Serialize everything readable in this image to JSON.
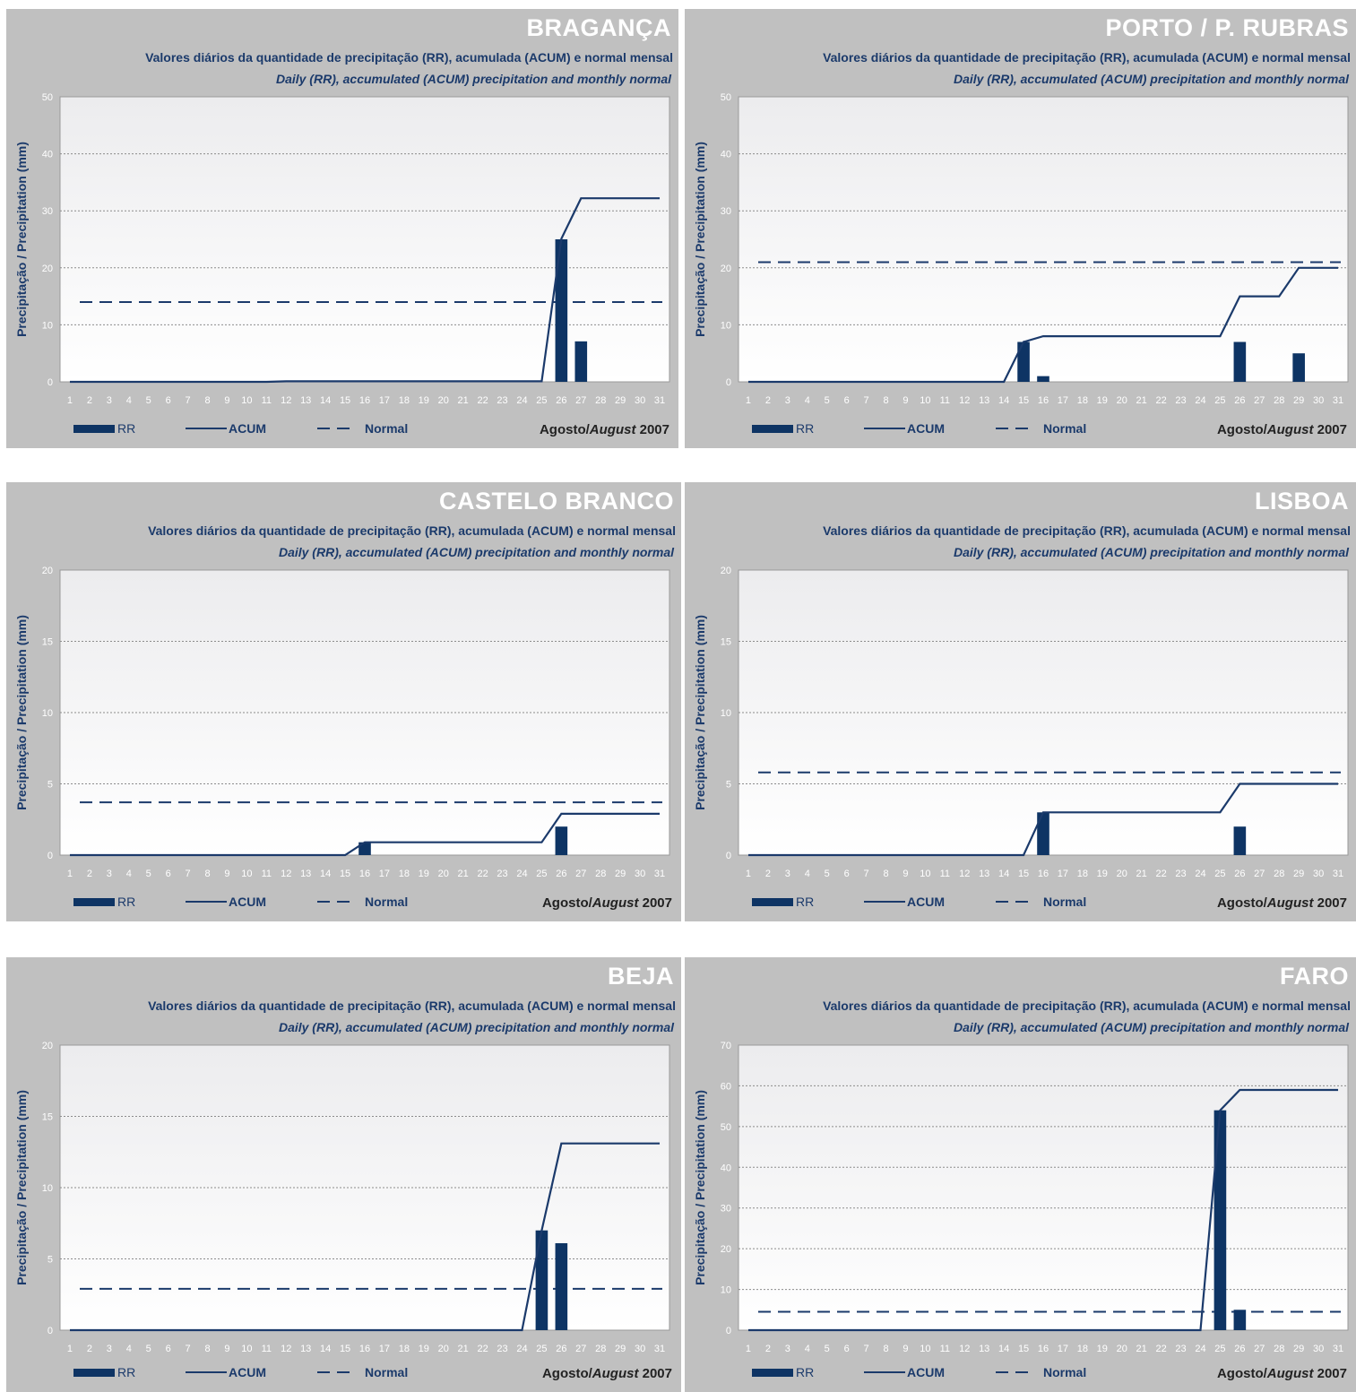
{
  "common": {
    "subtitle_pt": "Valores diários da quantidade de precipitação (RR), acumulada (ACUM) e normal mensal",
    "subtitle_en": "Daily  (RR), accumulated  (ACUM) precipitation and monthly normal",
    "ylabel": "Precipitação / Precipitation  (mm)",
    "legend": {
      "rr": "RR",
      "acum": "ACUM",
      "normal": "Normal"
    },
    "month_pt": "Agosto/",
    "month_en": "August",
    "year": " 2007",
    "colors": {
      "bar": "#0e3464",
      "line": "#1b3a6b",
      "panel": "#c0c0c0"
    }
  },
  "chart_data": [
    {
      "type": "bar",
      "title": "BRAGANÇA",
      "x": [
        "1",
        "2",
        "3",
        "4",
        "5",
        "6",
        "7",
        "8",
        "9",
        "10",
        "11",
        "12",
        "13",
        "14",
        "15",
        "16",
        "17",
        "18",
        "19",
        "20",
        "21",
        "22",
        "23",
        "24",
        "25",
        "26",
        "27",
        "28",
        "29",
        "30",
        "31"
      ],
      "ylim": [
        0,
        50
      ],
      "yticks": [
        0,
        10,
        20,
        30,
        40,
        50
      ],
      "grid": true,
      "series": [
        {
          "name": "RR",
          "type": "bar",
          "values": [
            0,
            0,
            0,
            0,
            0,
            0,
            0,
            0,
            0,
            0,
            0,
            0,
            0,
            0,
            0,
            0,
            0,
            0,
            0,
            0,
            0,
            0,
            0,
            0,
            0,
            25,
            7.1,
            0,
            0,
            0,
            0
          ]
        },
        {
          "name": "ACUM",
          "type": "line",
          "values": [
            0,
            0,
            0,
            0,
            0,
            0,
            0,
            0,
            0,
            0,
            0,
            0.1,
            0.1,
            0.1,
            0.1,
            0.1,
            0.1,
            0.1,
            0.1,
            0.1,
            0.1,
            0.1,
            0.1,
            0.1,
            0.1,
            25.1,
            32.2,
            32.2,
            32.2,
            32.2,
            32.2
          ]
        },
        {
          "name": "Normal",
          "type": "line",
          "value": 14
        }
      ]
    },
    {
      "type": "bar",
      "title": "PORTO / P. RUBRAS",
      "x": [
        "1",
        "2",
        "3",
        "4",
        "5",
        "6",
        "7",
        "8",
        "9",
        "10",
        "11",
        "12",
        "13",
        "14",
        "15",
        "16",
        "17",
        "18",
        "19",
        "20",
        "21",
        "22",
        "23",
        "24",
        "25",
        "26",
        "27",
        "28",
        "29",
        "30",
        "31"
      ],
      "ylim": [
        0,
        50
      ],
      "yticks": [
        0,
        10,
        20,
        30,
        40,
        50
      ],
      "grid": true,
      "series": [
        {
          "name": "RR",
          "type": "bar",
          "values": [
            0,
            0,
            0,
            0,
            0,
            0,
            0,
            0,
            0,
            0,
            0,
            0,
            0,
            0,
            7,
            1,
            0,
            0,
            0,
            0,
            0,
            0,
            0,
            0,
            0,
            7,
            0,
            0,
            5,
            0,
            0
          ]
        },
        {
          "name": "ACUM",
          "type": "line",
          "values": [
            0,
            0,
            0,
            0,
            0,
            0,
            0,
            0,
            0,
            0,
            0,
            0,
            0,
            0,
            7,
            8,
            8,
            8,
            8,
            8,
            8,
            8,
            8,
            8,
            8,
            15,
            15,
            15,
            20,
            20,
            20
          ]
        },
        {
          "name": "Normal",
          "type": "line",
          "value": 21
        }
      ]
    },
    {
      "type": "bar",
      "title": "CASTELO BRANCO",
      "x": [
        "1",
        "2",
        "3",
        "4",
        "5",
        "6",
        "7",
        "8",
        "9",
        "10",
        "11",
        "12",
        "13",
        "14",
        "15",
        "16",
        "17",
        "18",
        "19",
        "20",
        "21",
        "22",
        "23",
        "24",
        "25",
        "26",
        "27",
        "28",
        "29",
        "30",
        "31"
      ],
      "ylim": [
        0,
        20
      ],
      "yticks": [
        0,
        5,
        10,
        15,
        20
      ],
      "grid": true,
      "series": [
        {
          "name": "RR",
          "type": "bar",
          "values": [
            0,
            0,
            0,
            0,
            0,
            0,
            0,
            0,
            0,
            0,
            0,
            0,
            0,
            0,
            0,
            0.9,
            0,
            0,
            0,
            0,
            0,
            0,
            0,
            0,
            0,
            2,
            0,
            0,
            0,
            0,
            0
          ]
        },
        {
          "name": "ACUM",
          "type": "line",
          "values": [
            0,
            0,
            0,
            0,
            0,
            0,
            0,
            0,
            0,
            0,
            0,
            0,
            0,
            0,
            0,
            0.9,
            0.9,
            0.9,
            0.9,
            0.9,
            0.9,
            0.9,
            0.9,
            0.9,
            0.9,
            2.9,
            2.9,
            2.9,
            2.9,
            2.9,
            2.9
          ]
        },
        {
          "name": "Normal",
          "type": "line",
          "value": 3.7
        }
      ]
    },
    {
      "type": "bar",
      "title": "LISBOA",
      "x": [
        "1",
        "2",
        "3",
        "4",
        "5",
        "6",
        "7",
        "8",
        "9",
        "10",
        "11",
        "12",
        "13",
        "14",
        "15",
        "16",
        "17",
        "18",
        "19",
        "20",
        "21",
        "22",
        "23",
        "24",
        "25",
        "26",
        "27",
        "28",
        "29",
        "30",
        "31"
      ],
      "ylim": [
        0,
        20
      ],
      "yticks": [
        0,
        5,
        10,
        15,
        20
      ],
      "grid": true,
      "series": [
        {
          "name": "RR",
          "type": "bar",
          "values": [
            0,
            0,
            0,
            0,
            0,
            0,
            0,
            0,
            0,
            0,
            0,
            0,
            0,
            0,
            0,
            3,
            0,
            0,
            0,
            0,
            0,
            0,
            0,
            0,
            0,
            2,
            0,
            0,
            0,
            0,
            0
          ]
        },
        {
          "name": "ACUM",
          "type": "line",
          "values": [
            0,
            0,
            0,
            0,
            0,
            0,
            0,
            0,
            0,
            0,
            0,
            0,
            0,
            0,
            0,
            3,
            3,
            3,
            3,
            3,
            3,
            3,
            3,
            3,
            3,
            5,
            5,
            5,
            5,
            5,
            5
          ]
        },
        {
          "name": "Normal",
          "type": "line",
          "value": 5.8
        }
      ]
    },
    {
      "type": "bar",
      "title": "BEJA",
      "x": [
        "1",
        "2",
        "3",
        "4",
        "5",
        "6",
        "7",
        "8",
        "9",
        "10",
        "11",
        "12",
        "13",
        "14",
        "15",
        "16",
        "17",
        "18",
        "19",
        "20",
        "21",
        "22",
        "23",
        "24",
        "25",
        "26",
        "27",
        "28",
        "29",
        "30",
        "31"
      ],
      "ylim": [
        0,
        20
      ],
      "yticks": [
        0,
        5,
        10,
        15,
        20
      ],
      "grid": true,
      "series": [
        {
          "name": "RR",
          "type": "bar",
          "values": [
            0,
            0,
            0,
            0,
            0,
            0,
            0,
            0,
            0,
            0,
            0,
            0,
            0,
            0,
            0,
            0,
            0,
            0,
            0,
            0,
            0,
            0,
            0,
            0,
            7,
            6.1,
            0,
            0,
            0,
            0,
            0
          ]
        },
        {
          "name": "ACUM",
          "type": "line",
          "values": [
            0,
            0,
            0,
            0,
            0,
            0,
            0,
            0,
            0,
            0,
            0,
            0,
            0,
            0,
            0,
            0,
            0,
            0,
            0,
            0,
            0,
            0,
            0,
            0,
            7,
            13.1,
            13.1,
            13.1,
            13.1,
            13.1,
            13.1
          ]
        },
        {
          "name": "Normal",
          "type": "line",
          "value": 2.9
        }
      ]
    },
    {
      "type": "bar",
      "title": "FARO",
      "x": [
        "1",
        "2",
        "3",
        "4",
        "5",
        "6",
        "7",
        "8",
        "9",
        "10",
        "11",
        "12",
        "13",
        "14",
        "15",
        "16",
        "17",
        "18",
        "19",
        "20",
        "21",
        "22",
        "23",
        "24",
        "25",
        "26",
        "27",
        "28",
        "29",
        "30",
        "31"
      ],
      "ylim": [
        0,
        70
      ],
      "yticks": [
        0,
        10,
        20,
        30,
        40,
        50,
        60,
        70
      ],
      "grid": true,
      "series": [
        {
          "name": "RR",
          "type": "bar",
          "values": [
            0,
            0,
            0,
            0,
            0,
            0,
            0,
            0,
            0,
            0,
            0,
            0,
            0,
            0,
            0,
            0,
            0,
            0,
            0,
            0,
            0,
            0,
            0,
            0,
            54,
            5,
            0,
            0,
            0,
            0,
            0
          ]
        },
        {
          "name": "ACUM",
          "type": "line",
          "values": [
            0,
            0,
            0,
            0,
            0,
            0,
            0,
            0,
            0,
            0,
            0,
            0,
            0,
            0,
            0,
            0,
            0,
            0,
            0,
            0,
            0,
            0,
            0,
            0,
            54,
            59,
            59,
            59,
            59,
            59,
            59
          ]
        },
        {
          "name": "Normal",
          "type": "line",
          "value": 4.5
        }
      ]
    }
  ]
}
